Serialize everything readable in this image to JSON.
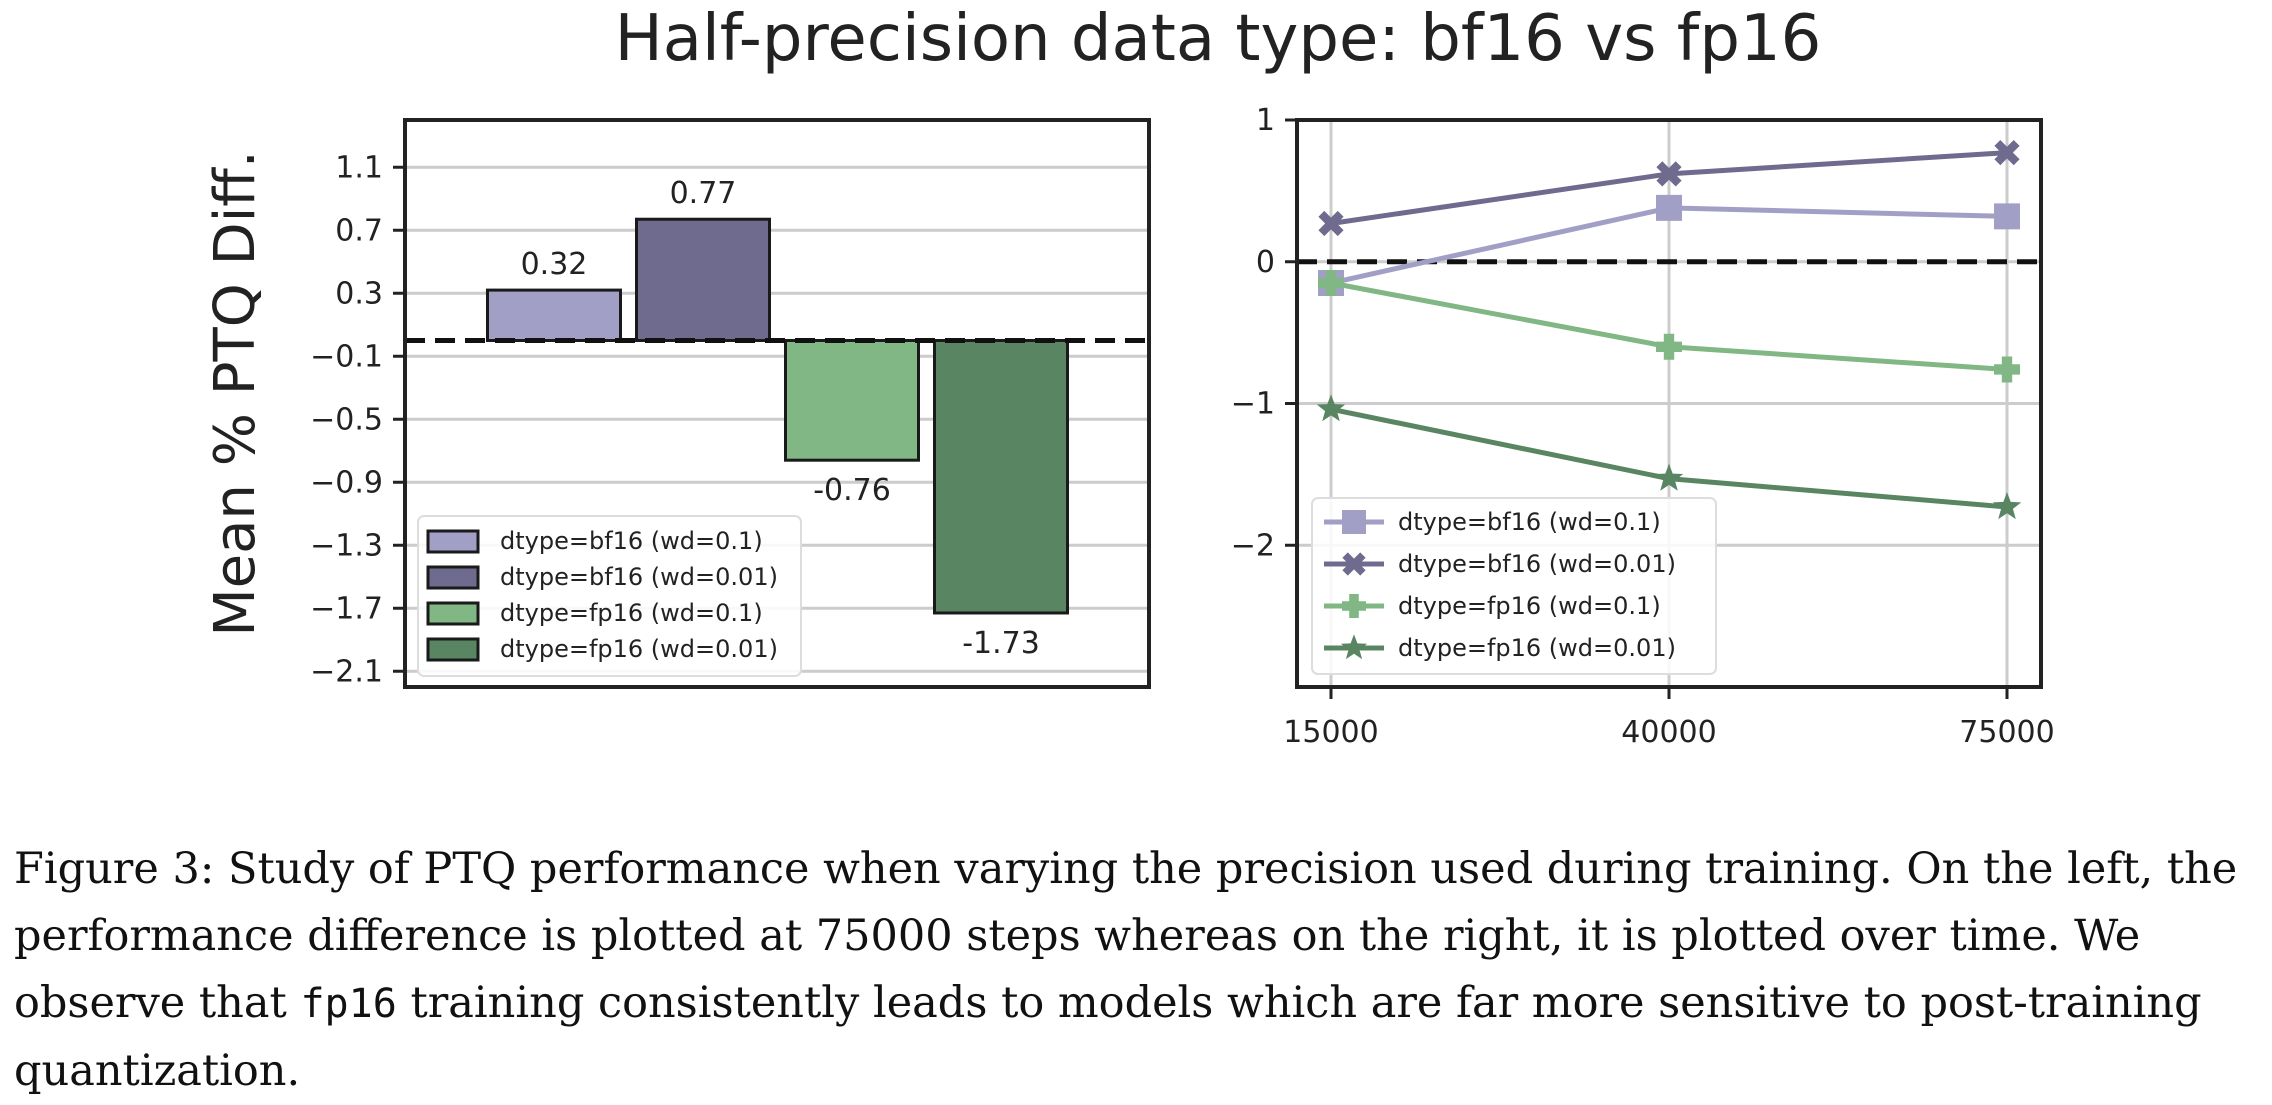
{
  "figure_title": "Half-precision data type: bf16 vs fp16",
  "caption": {
    "part1": "Figure 3: Study of PTQ performance when varying the precision used during training. On the left, the performance difference is plotted at 75000 steps whereas on the right, it is plotted over time. We observe that ",
    "code": "fp16",
    "part2": " training consistently leads to models which are far more sensitive to post-training quantization."
  },
  "colors": {
    "bf16_wd_0.1": "#a29fc6",
    "bf16_wd_0.01": "#6f6b8e",
    "fp16_wd_0.1": "#80b784",
    "fp16_wd_0.01": "#5a8562"
  },
  "chart_data": [
    {
      "type": "bar",
      "title": "",
      "ylabel": "Mean % PTQ Diff.",
      "xlabel": "",
      "ylim": [
        -2.2,
        1.4
      ],
      "yticks": [
        1.1,
        0.7,
        0.3,
        -0.1,
        -0.5,
        -0.9,
        -1.3,
        -1.7,
        -2.1
      ],
      "ytick_labels": [
        "1.1",
        "0.7",
        "0.3",
        "−0.1",
        "−0.5",
        "−0.9",
        "−1.3",
        "−1.7",
        "−2.1"
      ],
      "grid": "horizontal",
      "reference_line": 0,
      "legend": "lower-left",
      "series": [
        {
          "name": "dtype=bf16 (wd=0.1)",
          "value": 0.32,
          "label": "0.32",
          "color": "#a29fc6"
        },
        {
          "name": "dtype=bf16 (wd=0.01)",
          "value": 0.77,
          "label": "0.77",
          "color": "#6f6b8e"
        },
        {
          "name": "dtype=fp16 (wd=0.1)",
          "value": -0.76,
          "label": "-0.76",
          "color": "#80b784"
        },
        {
          "name": "dtype=fp16 (wd=0.01)",
          "value": -1.73,
          "label": "-1.73",
          "color": "#5a8562"
        }
      ]
    },
    {
      "type": "line",
      "title": "",
      "xlabel": "",
      "ylabel": "",
      "x": [
        15000,
        40000,
        75000
      ],
      "xtick_labels": [
        "15000",
        "40000",
        "75000"
      ],
      "ylim": [
        -3,
        1
      ],
      "yticks": [
        1,
        0,
        -1,
        -2
      ],
      "ytick_labels": [
        "1",
        "0",
        "−1",
        "−2"
      ],
      "grid": "both",
      "reference_line": 0,
      "legend": "lower-left",
      "series": [
        {
          "name": "dtype=bf16 (wd=0.1)",
          "values": [
            -0.15,
            0.38,
            0.32
          ],
          "marker": "square",
          "color": "#a29fc6"
        },
        {
          "name": "dtype=bf16 (wd=0.01)",
          "values": [
            0.27,
            0.62,
            0.77
          ],
          "marker": "x",
          "color": "#6f6b8e"
        },
        {
          "name": "dtype=fp16 (wd=0.1)",
          "values": [
            -0.15,
            -0.6,
            -0.76
          ],
          "marker": "plus",
          "color": "#80b784"
        },
        {
          "name": "dtype=fp16 (wd=0.01)",
          "values": [
            -1.04,
            -1.53,
            -1.73
          ],
          "marker": "star",
          "color": "#5a8562"
        }
      ]
    }
  ]
}
